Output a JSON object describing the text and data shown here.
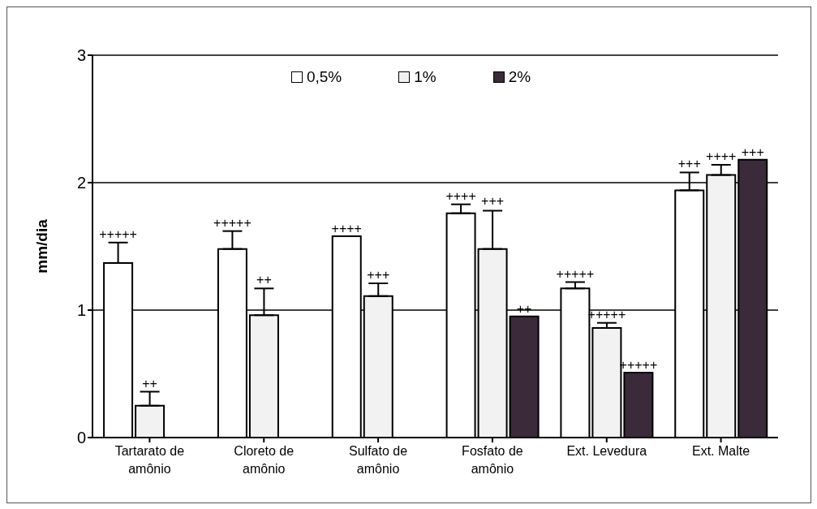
{
  "chart_data": {
    "type": "bar",
    "ylabel": "mm/dia",
    "categories": [
      "Tartarato de amônio",
      "Cloreto de amônio",
      "Sulfato de amônio",
      "Fosfato de amônio",
      "Ext. Levedura",
      "Ext. Malte"
    ],
    "series": [
      {
        "name": "0,5%",
        "color": "#ffffff",
        "values": [
          1.37,
          1.48,
          1.58,
          1.76,
          1.17,
          1.94
        ],
        "errors": [
          [
            1.37,
            1.53
          ],
          [
            1.48,
            1.62
          ],
          null,
          [
            1.76,
            1.83
          ],
          [
            1.17,
            1.22
          ],
          [
            1.94,
            2.08
          ]
        ],
        "value_labels": [
          "+++++",
          "+++++",
          "++++",
          "++++",
          "+++++",
          "+++"
        ]
      },
      {
        "name": "1%",
        "color": "#f2f2f2",
        "values": [
          0.25,
          0.96,
          1.11,
          1.48,
          0.86,
          2.06
        ],
        "errors": [
          [
            0.25,
            0.36
          ],
          [
            0.96,
            1.17
          ],
          [
            1.11,
            1.21
          ],
          [
            1.48,
            1.78
          ],
          [
            0.86,
            0.9
          ],
          [
            2.06,
            2.14
          ]
        ],
        "value_labels": [
          "++",
          "++",
          "+++",
          "+++",
          "+++++",
          "++++"
        ]
      },
      {
        "name": "2%",
        "color": "#3a2a3a",
        "values": [
          null,
          null,
          null,
          0.95,
          0.51,
          2.18
        ],
        "value_labels": [
          null,
          null,
          null,
          "++",
          "+++++",
          "+++"
        ]
      }
    ],
    "ylim": [
      0,
      3
    ],
    "yticks": [
      0,
      1,
      2,
      3
    ],
    "grid": "y",
    "legend": "top"
  }
}
